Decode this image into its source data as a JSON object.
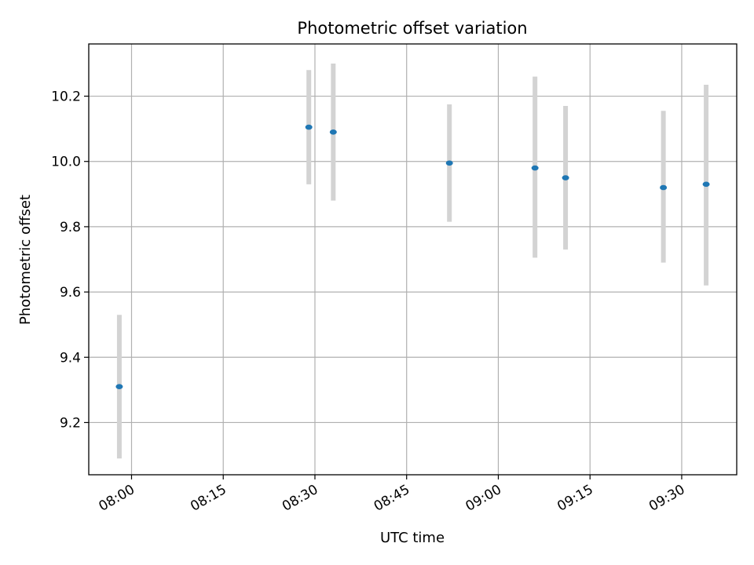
{
  "chart_data": {
    "type": "scatter",
    "title": "Photometric offset variation",
    "xlabel": "UTC time",
    "ylabel": "Photometric offset",
    "xlim": [
      "07:53",
      "09:39"
    ],
    "ylim": [
      9.04,
      10.36
    ],
    "x_ticks": [
      "08:00",
      "08:15",
      "08:30",
      "08:45",
      "09:00",
      "09:15",
      "09:30"
    ],
    "y_ticks": [
      "9.2",
      "9.4",
      "9.6",
      "9.8",
      "10.0",
      "10.2"
    ],
    "grid": true,
    "series": [
      {
        "marker_color": "#1f77b4",
        "errorbar_color": "#d3d3d3",
        "points": [
          {
            "x": "07:58",
            "y": 9.31,
            "ylow": 9.09,
            "yhigh": 9.53
          },
          {
            "x": "08:29",
            "y": 10.105,
            "ylow": 9.93,
            "yhigh": 10.28
          },
          {
            "x": "08:33",
            "y": 10.09,
            "ylow": 9.88,
            "yhigh": 10.3
          },
          {
            "x": "08:52",
            "y": 9.995,
            "ylow": 9.815,
            "yhigh": 10.175
          },
          {
            "x": "09:06",
            "y": 9.98,
            "ylow": 9.705,
            "yhigh": 10.26
          },
          {
            "x": "09:11",
            "y": 9.95,
            "ylow": 9.73,
            "yhigh": 10.17
          },
          {
            "x": "09:27",
            "y": 9.92,
            "ylow": 9.69,
            "yhigh": 10.155
          },
          {
            "x": "09:34",
            "y": 9.93,
            "ylow": 9.62,
            "yhigh": 10.235
          }
        ]
      }
    ]
  }
}
